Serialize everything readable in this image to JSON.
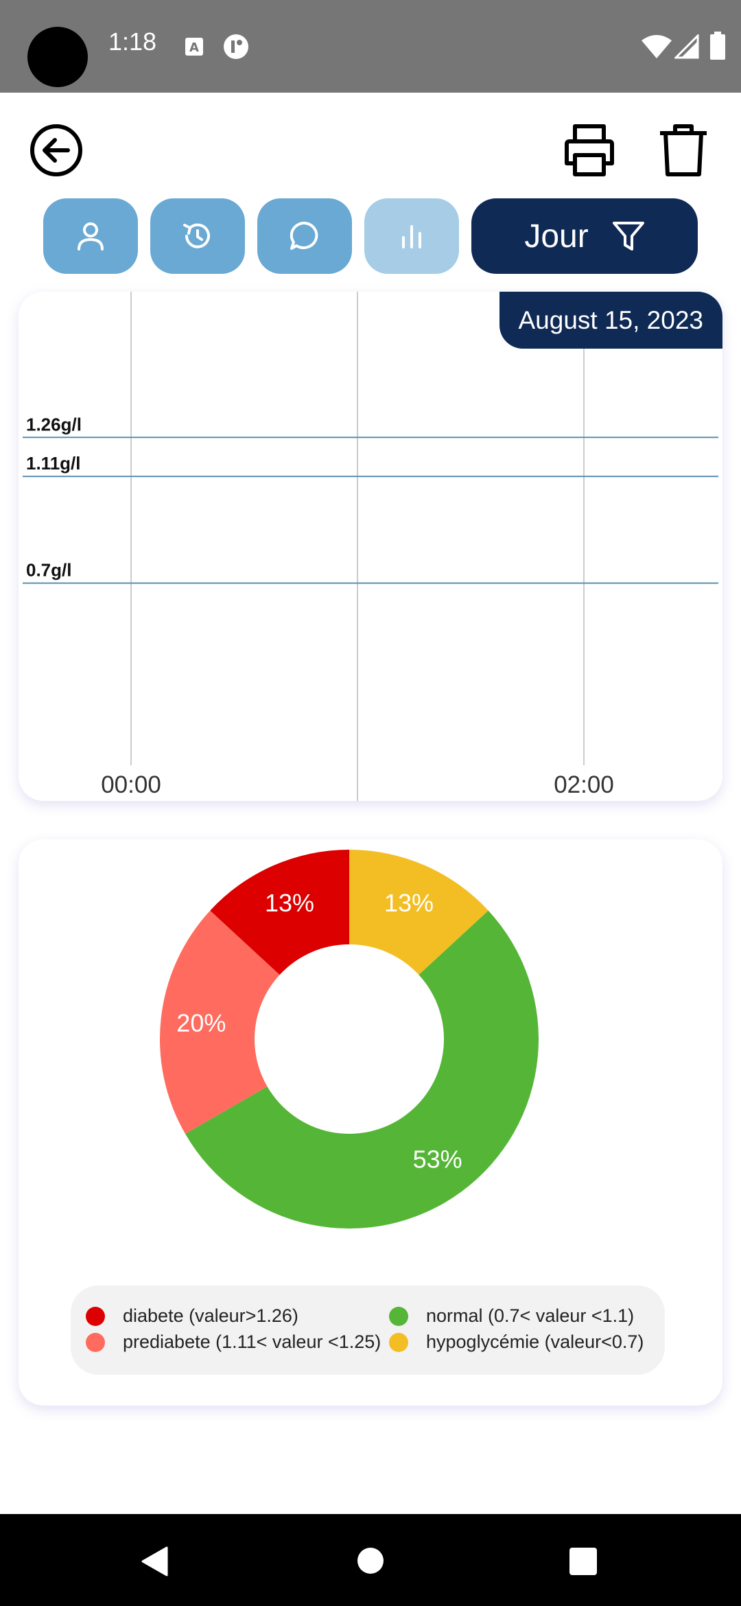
{
  "status_bar": {
    "time": "1:18",
    "icons": [
      "translate-icon",
      "app-notification-icon",
      "wifi-icon",
      "signal-icon",
      "battery-icon"
    ]
  },
  "header": {
    "back_icon": "arrow-left-circle-icon",
    "print_icon": "printer-icon",
    "delete_icon": "trash-icon"
  },
  "tabs": [
    {
      "name": "profile",
      "icon": "user-icon",
      "state": "normal"
    },
    {
      "name": "history",
      "icon": "history-icon",
      "state": "normal"
    },
    {
      "name": "comments",
      "icon": "chat-icon",
      "state": "normal"
    },
    {
      "name": "statistics",
      "icon": "bar-chart-icon",
      "state": "selected"
    }
  ],
  "filter": {
    "label": "Jour",
    "icon": "filter-icon"
  },
  "colors": {
    "accent_dark": "#0f2a55",
    "tab_blue": "#69a9d3",
    "tab_blue_light": "#a7cce5",
    "diabete": "#dc0000",
    "prediabete": "#ff6b5e",
    "normal": "#55b536",
    "hypoglycemie": "#f3be23",
    "threshold_line": "#5b8db0"
  },
  "chart_data": [
    {
      "type": "line",
      "date": "August 15, 2023",
      "x_tick_labels": [
        "00:00",
        "02:00"
      ],
      "thresholds": [
        {
          "label": "1.26g/l",
          "value": 1.26
        },
        {
          "label": "1.11g/l",
          "value": 1.11
        },
        {
          "label": "0.7g/l",
          "value": 0.7
        }
      ],
      "series": [],
      "ylim": [
        0,
        1.82
      ],
      "grid": "vertical"
    },
    {
      "type": "pie",
      "donut": true,
      "slices": [
        {
          "label": "hypoglycémie (valeur<0.7)",
          "value": 13,
          "text": "13%",
          "color_key": "hypoglycemie"
        },
        {
          "label": "normal (0.7< valeur <1.1)",
          "value": 53,
          "text": "53%",
          "color_key": "normal"
        },
        {
          "label": "prediabete (1.11< valeur <1.25)",
          "value": 20,
          "text": "20%",
          "color_key": "prediabete"
        },
        {
          "label": "diabete (valeur>1.26)",
          "value": 13,
          "text": "13%",
          "color_key": "diabete"
        }
      ],
      "legend": [
        {
          "label": "diabete (valeur>1.26)",
          "color_key": "diabete"
        },
        {
          "label": "normal (0.7< valeur <1.1)",
          "color_key": "normal"
        },
        {
          "label": "prediabete (1.11< valeur <1.25)",
          "color_key": "prediabete"
        },
        {
          "label": "hypoglycémie (valeur<0.7)",
          "color_key": "hypoglycemie"
        }
      ],
      "legend_position": "bottom"
    }
  ],
  "nav_bar": {
    "icons": [
      "back-triangle-icon",
      "home-circle-icon",
      "recents-square-icon"
    ]
  }
}
